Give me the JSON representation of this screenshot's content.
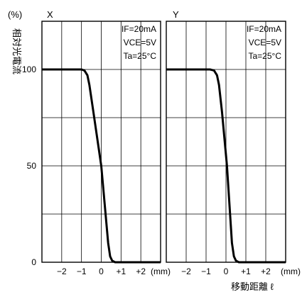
{
  "chart_data": [
    {
      "type": "line",
      "title": "X",
      "ylabel": "相対光電流",
      "yunit": "(%)",
      "xlabel": "移動距離 ℓ",
      "xunit": "(mm)",
      "xlim": [
        -3.0,
        3.0
      ],
      "ylim": [
        0,
        100
      ],
      "yticks": [
        0,
        50,
        100
      ],
      "ytick_labels": [
        "0",
        "50",
        "100"
      ],
      "xticks": [
        -2,
        -1,
        0,
        1,
        2
      ],
      "xtick_labels": [
        "−2",
        "−1",
        "0",
        "+1",
        "+2"
      ],
      "grid": true,
      "annotations": [
        "IF=20mA",
        "VCE=5V",
        "Ta=25°C"
      ],
      "x": [
        -3.0,
        -1.0,
        -0.85,
        -0.7,
        -0.6,
        -0.4,
        0.0,
        0.35,
        0.45,
        0.55,
        0.7,
        3.0
      ],
      "y": [
        100,
        100,
        99.5,
        97,
        92,
        78,
        50,
        10,
        3,
        0.8,
        0,
        0
      ]
    },
    {
      "type": "line",
      "title": "Y",
      "xlabel": "移動距離 ℓ",
      "xunit": "(mm)",
      "xlim": [
        -3.0,
        3.0
      ],
      "ylim": [
        0,
        100
      ],
      "xticks": [
        -2,
        -1,
        0,
        1,
        2
      ],
      "xtick_labels": [
        "−2",
        "−1",
        "0",
        "+1",
        "+2"
      ],
      "grid": true,
      "annotations": [
        "IF=20mA",
        "VCE=5V",
        "Ta=25°C"
      ],
      "x": [
        -3.0,
        -0.8,
        -0.6,
        -0.45,
        -0.35,
        -0.2,
        0.05,
        0.3,
        0.4,
        0.5,
        0.65,
        3.0
      ],
      "y": [
        100,
        100,
        99.5,
        97,
        92,
        78,
        50,
        10,
        3,
        0.8,
        0,
        0
      ]
    }
  ]
}
